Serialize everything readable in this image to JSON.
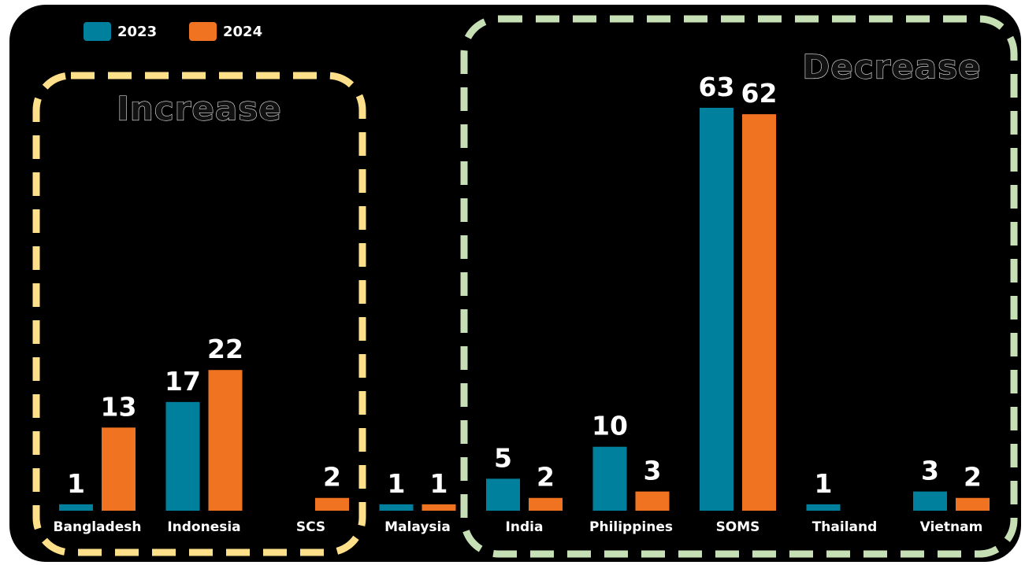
{
  "chart_data": {
    "type": "bar",
    "categories": [
      "Bangladesh",
      "Indonesia",
      "SCS",
      "Malaysia",
      "India",
      "Philippines",
      "SOMS",
      "Thailand",
      "Vietnam"
    ],
    "series": [
      {
        "name": "2023",
        "values": [
          1,
          17,
          null,
          1,
          5,
          10,
          63,
          1,
          3
        ],
        "color": "#00809d"
      },
      {
        "name": "2024",
        "values": [
          13,
          22,
          2,
          1,
          2,
          3,
          62,
          null,
          2
        ],
        "color": "#f07322"
      }
    ],
    "ylim": [
      0,
      72
    ],
    "grid": false,
    "legend_position": "top-left",
    "annotations": [
      {
        "text": "Increase",
        "categories": [
          "Bangladesh",
          "Indonesia",
          "SCS"
        ],
        "color": "#ffe08a"
      },
      {
        "text": "Decrease",
        "categories": [
          "India",
          "Philippines",
          "SOMS",
          "Thailand",
          "Vietnam"
        ],
        "color": "#c7dfb4"
      }
    ]
  },
  "theme": {
    "background": "#000000",
    "text": "#ffffff"
  }
}
